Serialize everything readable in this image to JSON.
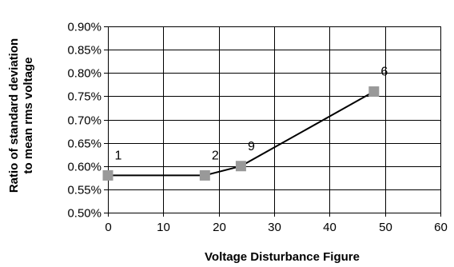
{
  "chart_data": {
    "type": "line",
    "xlabel": "Voltage Disturbance Figure",
    "ylabel_lines": [
      "Ratio of standard deviation",
      "to mean rms voltage"
    ],
    "xlim": [
      0,
      60
    ],
    "ylim": [
      0.5,
      0.9
    ],
    "x_ticks": [
      0,
      10,
      20,
      30,
      40,
      50,
      60
    ],
    "x_tick_labels": [
      "0",
      "10",
      "20",
      "30",
      "40",
      "50",
      "60"
    ],
    "y_ticks": [
      0.5,
      0.55,
      0.6,
      0.65,
      0.7,
      0.75,
      0.8,
      0.85,
      0.9
    ],
    "y_tick_labels": [
      "0.50%",
      "0.55%",
      "0.60%",
      "0.65%",
      "0.70%",
      "0.75%",
      "0.80%",
      "0.85%",
      "0.90%"
    ],
    "grid": true,
    "series": [
      {
        "points": [
          {
            "x": 0,
            "y": 0.58,
            "label": "1"
          },
          {
            "x": 17.5,
            "y": 0.58,
            "label": "2"
          },
          {
            "x": 24,
            "y": 0.6,
            "label": "9"
          },
          {
            "x": 48,
            "y": 0.76,
            "label": "6"
          }
        ],
        "line_color": "#000000",
        "marker_color": "#999999",
        "marker": "square"
      }
    ]
  }
}
